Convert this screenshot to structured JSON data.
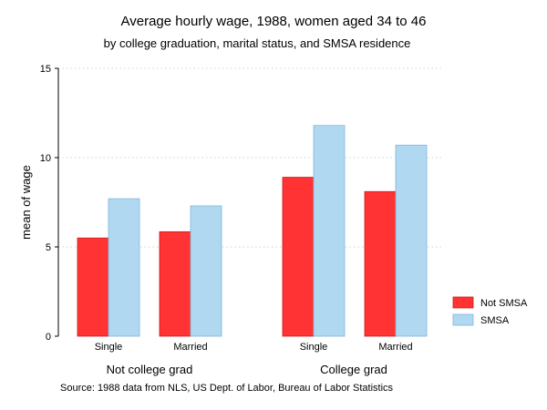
{
  "chart_data": {
    "type": "bar",
    "title": "Average hourly wage, 1988, women aged 34 to 46",
    "subtitle": "by college graduation, marital status, and SMSA residence",
    "ylabel": "mean of wage",
    "xlabel": "",
    "ylim": [
      0,
      15
    ],
    "yticks": [
      0,
      5,
      10,
      15
    ],
    "grid": true,
    "legend_position": "right",
    "groups": [
      {
        "label": "Not college grad",
        "categories": [
          "Single",
          "Married"
        ]
      },
      {
        "label": "College grad",
        "categories": [
          "Single",
          "Married"
        ]
      }
    ],
    "series": [
      {
        "name": "Not SMSA",
        "color": "#ff3333",
        "values": [
          5.5,
          5.85,
          8.9,
          8.1
        ]
      },
      {
        "name": "SMSA",
        "color": "#b0d8f0",
        "values": [
          7.7,
          7.3,
          11.8,
          10.7
        ]
      }
    ],
    "note": "Source: 1988 data from NLS, US Dept. of Labor, Bureau of Labor Statistics"
  }
}
